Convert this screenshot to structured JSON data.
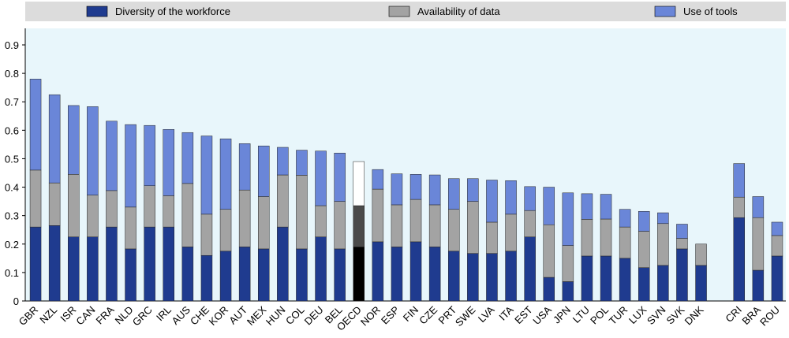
{
  "chart_data": {
    "type": "stacked-bar",
    "categories": [
      "GBR",
      "NZL",
      "ISR",
      "CAN",
      "FRA",
      "NLD",
      "GRC",
      "IRL",
      "AUS",
      "CHE",
      "KOR",
      "AUT",
      "MEX",
      "HUN",
      "COL",
      "DEU",
      "BEL",
      "OECD",
      "NOR",
      "ESP",
      "FIN",
      "CZE",
      "PRT",
      "SWE",
      "LVA",
      "ITA",
      "EST",
      "USA",
      "JPN",
      "LTU",
      "POL",
      "TUR",
      "LUX",
      "SVN",
      "SVK",
      "DNK",
      null,
      "CRI",
      "BRA",
      "ROU"
    ],
    "series": [
      {
        "name": "Diversity of the workforce",
        "color": "#1f3b8f",
        "values": [
          0.26,
          0.265,
          0.225,
          0.225,
          0.26,
          0.183,
          0.26,
          0.26,
          0.19,
          0.16,
          0.175,
          0.19,
          0.183,
          0.26,
          0.183,
          0.225,
          0.183,
          0.19,
          0.208,
          0.19,
          0.208,
          0.19,
          0.175,
          0.167,
          0.167,
          0.175,
          0.225,
          0.083,
          0.068,
          0.158,
          0.158,
          0.15,
          0.117,
          0.125,
          0.183,
          0.125,
          null,
          0.293,
          0.108,
          0.158
        ]
      },
      {
        "name": "Availability of data",
        "color": "#a3a3a3",
        "values": [
          0.2,
          0.15,
          0.22,
          0.147,
          0.128,
          0.147,
          0.145,
          0.11,
          0.223,
          0.145,
          0.147,
          0.2,
          0.184,
          0.183,
          0.259,
          0.11,
          0.167,
          0.145,
          0.185,
          0.148,
          0.149,
          0.148,
          0.147,
          0.183,
          0.11,
          0.13,
          0.093,
          0.185,
          0.127,
          0.129,
          0.13,
          0.11,
          0.128,
          0.147,
          0.037,
          0.075,
          null,
          0.072,
          0.185,
          0.072
        ]
      },
      {
        "name": "Use of tools",
        "color": "#6a86d8",
        "values": [
          0.32,
          0.31,
          0.242,
          0.311,
          0.244,
          0.29,
          0.212,
          0.233,
          0.179,
          0.275,
          0.248,
          0.163,
          0.178,
          0.097,
          0.088,
          0.192,
          0.17,
          0.155,
          0.069,
          0.109,
          0.088,
          0.105,
          0.108,
          0.08,
          0.148,
          0.118,
          0.084,
          0.132,
          0.185,
          0.09,
          0.087,
          0.062,
          0.07,
          0.038,
          0.05,
          0,
          null,
          0.118,
          0.074,
          0.047
        ]
      }
    ],
    "highlight_category": "OECD",
    "highlight_colors": [
      "#000000",
      "#4a4a4a",
      "#ffffff"
    ],
    "ylim": [
      0,
      0.9
    ],
    "yticks": [
      0,
      0.1,
      0.2,
      0.3,
      0.4,
      0.5,
      0.6,
      0.7,
      0.8,
      0.9
    ],
    "grid": false
  }
}
